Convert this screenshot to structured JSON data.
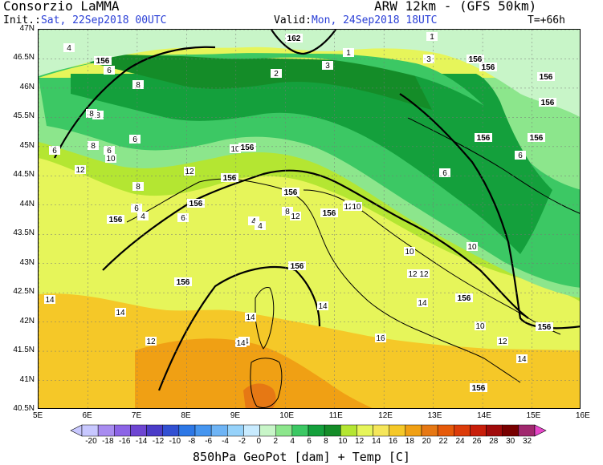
{
  "header": {
    "org": "Consorzio LaMMA",
    "model": "ARW 12km - (GFS 50km)",
    "init_label": "Init.:",
    "init_value": "Sat, 22Sep2018 00UTC",
    "valid_label": "Valid:",
    "valid_value": "Mon, 24Sep2018 18UTC",
    "forecast_hour": "T=+66h"
  },
  "axes": {
    "lat_labels": [
      "47N",
      "46.5N",
      "46N",
      "45.5N",
      "45N",
      "44.5N",
      "44N",
      "43.5N",
      "43N",
      "42.5N",
      "42N",
      "41.5N",
      "41N",
      "40.5N"
    ],
    "lon_labels": [
      "5E",
      "6E",
      "7E",
      "8E",
      "9E",
      "10E",
      "11E",
      "12E",
      "13E",
      "14E",
      "15E",
      "16E"
    ]
  },
  "colorbar": {
    "ticks": [
      "-20",
      "-18",
      "-16",
      "-14",
      "-12",
      "-10",
      "-8",
      "-6",
      "-4",
      "-2",
      "0",
      "2",
      "4",
      "6",
      "8",
      "10",
      "12",
      "14",
      "16",
      "18",
      "20",
      "22",
      "24",
      "26",
      "28",
      "30",
      "32"
    ],
    "colors": [
      "#c8c8ff",
      "#a88cf0",
      "#8c64e6",
      "#6e46d2",
      "#4b3cc8",
      "#3250d2",
      "#2d78e6",
      "#4696f0",
      "#6eb4f5",
      "#96d2fa",
      "#c8ebff",
      "#c8f5c8",
      "#8ce68c",
      "#3cc864",
      "#14a03c",
      "#148c28",
      "#b4e632",
      "#e6f55a",
      "#f5e65a",
      "#f5c828",
      "#f0a014",
      "#e67814",
      "#e65a0a",
      "#dc3c0a",
      "#c81e0a",
      "#a00a0a",
      "#780000",
      "#a0286e"
    ],
    "title": "850hPa GeoPot [dam] + Temp [C]"
  },
  "map_labels": {
    "temperature": [
      "4",
      "6",
      "8",
      "8",
      "8",
      "6",
      "6",
      "10",
      "12",
      "12",
      "10",
      "8",
      "6",
      "4",
      "6",
      "4",
      "4",
      "6",
      "8",
      "12",
      "12",
      "10",
      "10",
      "12",
      "12",
      "14",
      "14",
      "12",
      "14",
      "14",
      "14",
      "16",
      "14",
      "14",
      "12",
      "10",
      "6",
      "6",
      "8",
      "6",
      "2",
      "1",
      "3",
      "1",
      "3",
      "14",
      "10"
    ],
    "geopotential": [
      "156",
      "156",
      "156",
      "156",
      "156",
      "156",
      "156",
      "156",
      "156",
      "156",
      "156",
      "156",
      "156",
      "156",
      "156",
      "156",
      "162",
      "156",
      "156"
    ]
  }
}
